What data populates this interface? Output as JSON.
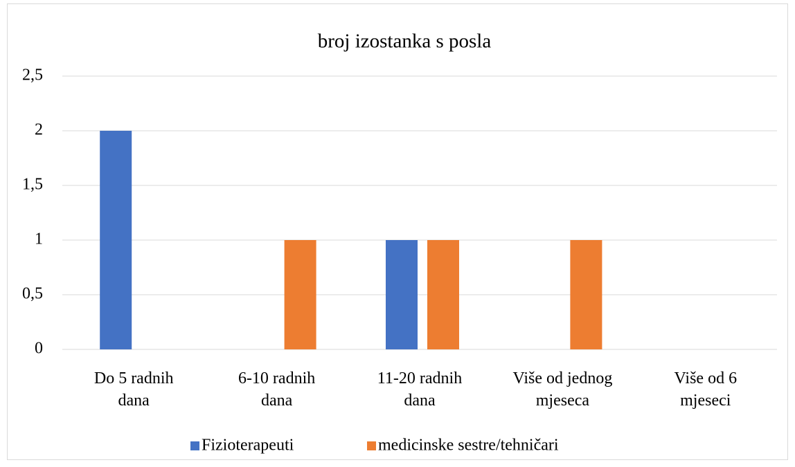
{
  "chart_data": {
    "type": "bar",
    "title": "broj izostanka s posla",
    "categories": [
      "Do 5 radnih dana",
      "6-10 radnih dana",
      "11-20 radnih dana",
      "Više od jednog mjeseca",
      "Više od 6 mjeseci"
    ],
    "series": [
      {
        "name": "Fizioterapeuti",
        "color": "#4472c4",
        "values": [
          2,
          0,
          1,
          0,
          0
        ]
      },
      {
        "name": "medicinske sestre/tehničari",
        "color": "#ed7d31",
        "values": [
          0,
          1,
          1,
          1,
          0
        ]
      }
    ],
    "ylim": [
      0,
      2.5
    ],
    "yticks": [
      0,
      {
        "value": 0.5,
        "label": "0,5"
      },
      1,
      {
        "value": 1.5,
        "label": "1,5"
      },
      2,
      {
        "value": 2.5,
        "label": "2,5"
      }
    ],
    "grid": true,
    "legend": "bottom"
  }
}
